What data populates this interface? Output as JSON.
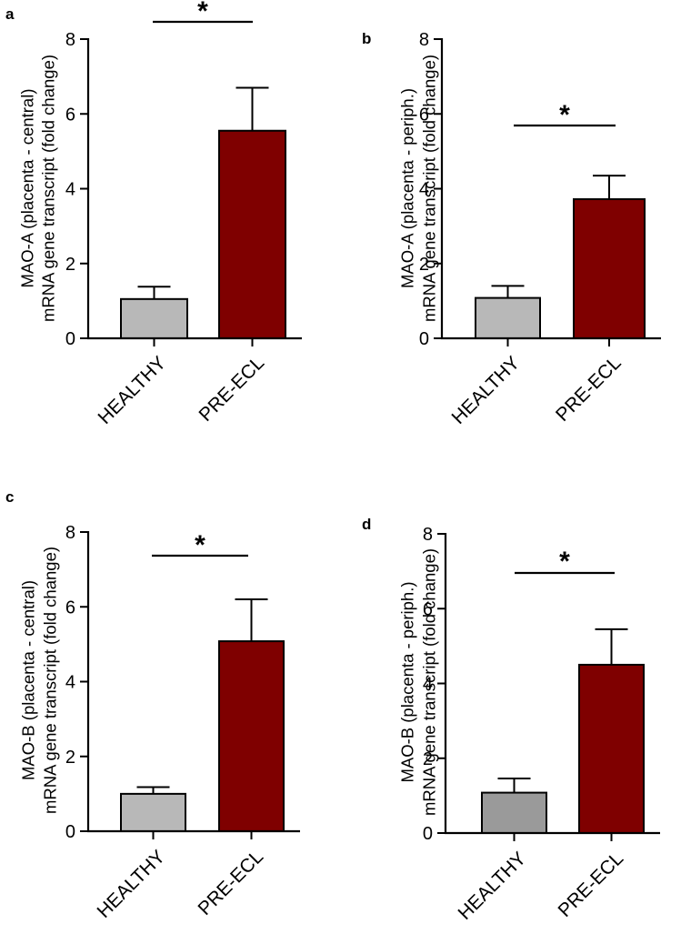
{
  "chart_data": [
    {
      "type": "bar",
      "panel": "a",
      "categories": [
        "HEALTHY",
        "PRE-ECL"
      ],
      "values": [
        1.05,
        5.55
      ],
      "errors": [
        0.33,
        1.15
      ],
      "colors": [
        "#b8b8b8",
        "#7f0000"
      ],
      "ylabel_lines": [
        "MAO-A (placenta - central)",
        "mRNA gene transcript (fold change)"
      ],
      "yticks": [
        "0",
        "2",
        "4",
        "6",
        "8"
      ],
      "ylim": [
        0,
        8
      ],
      "significance": "*"
    },
    {
      "type": "bar",
      "panel": "b",
      "categories": [
        "HEALTHY",
        "PRE-ECL"
      ],
      "values": [
        1.08,
        3.72
      ],
      "errors": [
        0.32,
        0.63
      ],
      "colors": [
        "#b8b8b8",
        "#7f0000"
      ],
      "ylabel_lines": [
        "MAO-A (placenta - periph.)",
        "mRNA gene transcript (fold change)"
      ],
      "yticks": [
        "0",
        "2",
        "4",
        "6",
        "8"
      ],
      "ylim": [
        0,
        8
      ],
      "significance": "*"
    },
    {
      "type": "bar",
      "panel": "c",
      "categories": [
        "HEALTHY",
        "PRE-ECL"
      ],
      "values": [
        1.0,
        5.08
      ],
      "errors": [
        0.18,
        1.12
      ],
      "colors": [
        "#b8b8b8",
        "#7f0000"
      ],
      "ylabel_lines": [
        "MAO-B (placenta - central)",
        "mRNA gene transcript (fold change)"
      ],
      "yticks": [
        "0",
        "2",
        "4",
        "6",
        "8"
      ],
      "ylim": [
        0,
        8
      ],
      "significance": "*"
    },
    {
      "type": "bar",
      "panel": "d",
      "categories": [
        "HEALTHY",
        "PRE-ECL"
      ],
      "values": [
        1.08,
        4.5
      ],
      "errors": [
        0.38,
        0.95
      ],
      "colors": [
        "#9a9a9a",
        "#7f0000"
      ],
      "ylabel_lines": [
        "MAO-B (placenta - periph.)",
        "mRNA gene transcript  (fold change)"
      ],
      "yticks": [
        "0",
        "2",
        "4",
        "6",
        "8"
      ],
      "ylim": [
        0,
        8
      ],
      "significance": "*"
    }
  ]
}
